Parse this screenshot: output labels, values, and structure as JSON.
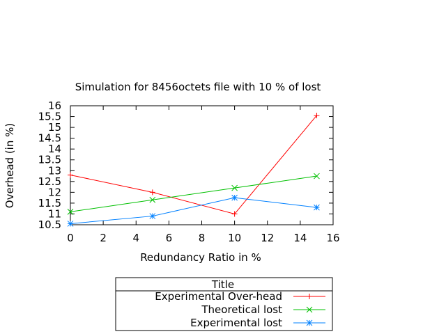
{
  "chart_data": {
    "type": "line",
    "title": "Simulation for 8456octets file with 10 % of lost",
    "xlabel": "Redundancy Ratio in %",
    "ylabel": "Overhead (in %)",
    "xlim": [
      0,
      16
    ],
    "ylim": [
      10.5,
      16
    ],
    "xticks": [
      0,
      2,
      4,
      6,
      8,
      10,
      12,
      14,
      16
    ],
    "yticks": [
      10.5,
      11,
      11.5,
      12,
      12.5,
      13,
      13.5,
      14,
      14.5,
      15,
      15.5,
      16
    ],
    "grid": false,
    "legend": {
      "title": "Title",
      "placement": "below-center"
    },
    "series": [
      {
        "name": "Experimental Over-head",
        "color": "#ff0000",
        "marker": "plus",
        "x": [
          0,
          5,
          10,
          15
        ],
        "y": [
          12.8,
          12.0,
          11.0,
          15.55
        ]
      },
      {
        "name": "Theoretical lost",
        "color": "#00c000",
        "marker": "x",
        "x": [
          0,
          5,
          10,
          15
        ],
        "y": [
          11.1,
          11.65,
          12.2,
          12.75
        ]
      },
      {
        "name": "Experimental lost",
        "color": "#0080ff",
        "marker": "star",
        "x": [
          0,
          5,
          10,
          15
        ],
        "y": [
          10.55,
          10.9,
          11.75,
          11.3
        ]
      }
    ]
  }
}
